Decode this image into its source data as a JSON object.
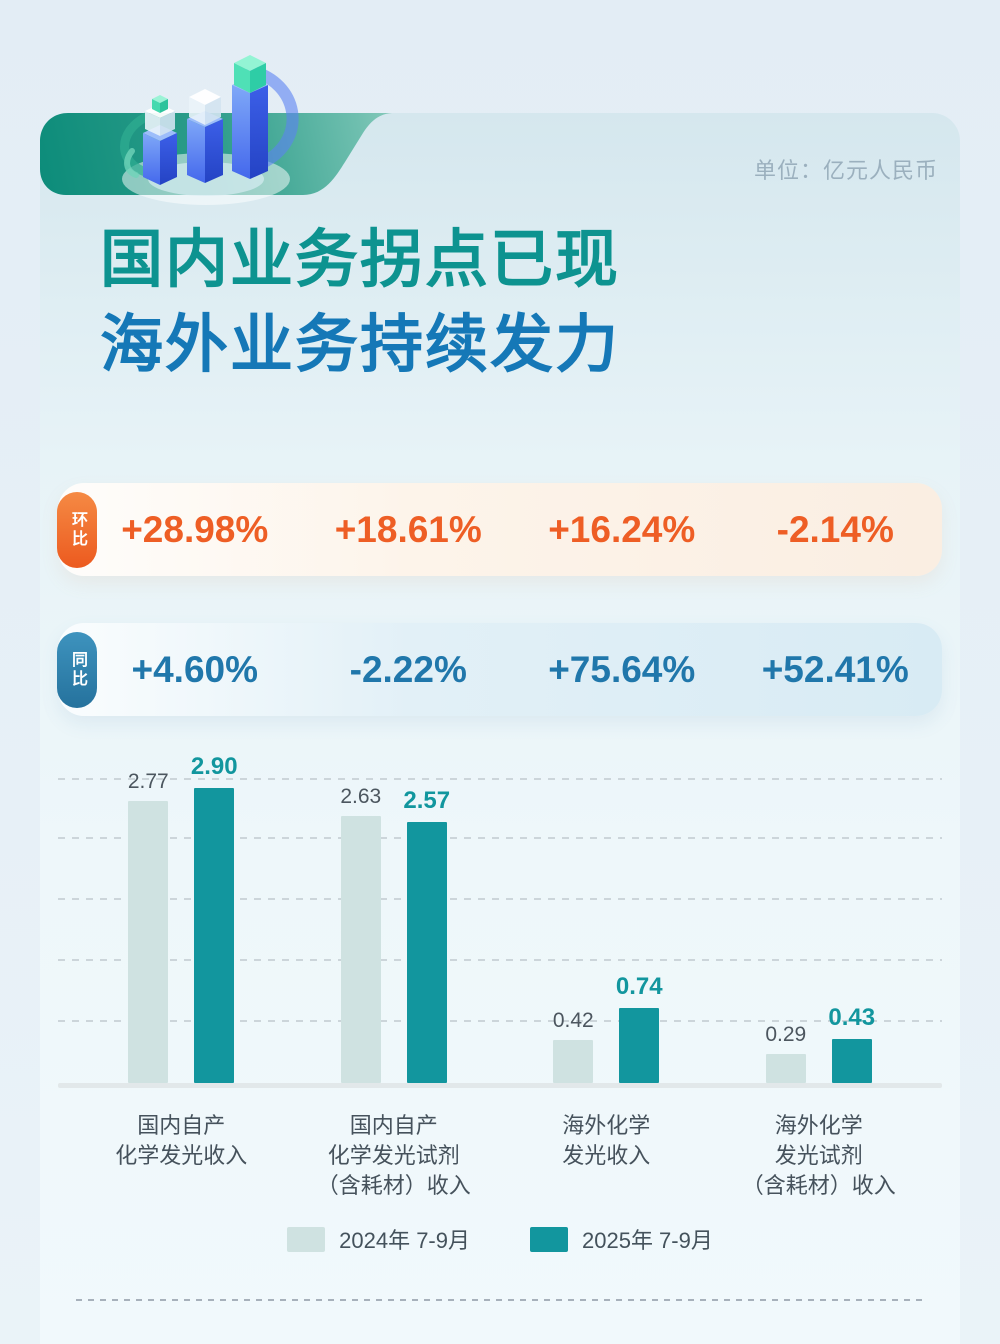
{
  "header": {
    "unit_label": "单位：亿元人民币",
    "title_line1": "国内业务拐点已现",
    "title_line2": "海外业务持续发力",
    "title_line1_color": "#0d9390",
    "title_line2_color": "#1578b7",
    "banner_color": "#0f8e7c",
    "illustration": "isometric-growth-bars"
  },
  "qoq": {
    "badge": "环比",
    "badge_color": "#ee6325",
    "text_color": "#ee5e25",
    "values": [
      "+28.98%",
      "+18.61%",
      "+16.24%",
      "-2.14%"
    ]
  },
  "yoy": {
    "badge": "同比",
    "badge_color": "#2b7fa9",
    "text_color": "#2077ab",
    "values": [
      "+4.60%",
      "-2.22%",
      "+75.64%",
      "+52.41%"
    ]
  },
  "chart_data": {
    "type": "bar",
    "title": "",
    "xlabel": "",
    "ylabel": "",
    "unit": "亿元人民币",
    "categories": [
      "国内自产化学发光收入",
      "国内自产化学发光试剂（含耗材）收入",
      "海外化学发光收入",
      "海外化学发光试剂（含耗材）收入"
    ],
    "categories_lines": [
      [
        "国内自产",
        "化学发光收入"
      ],
      [
        "国内自产",
        "化学发光试剂",
        "（含耗材）收入"
      ],
      [
        "海外化学",
        "发光收入"
      ],
      [
        "海外化学",
        "发光试剂",
        "（含耗材）收入"
      ]
    ],
    "series": [
      {
        "name": "2024年 7-9月",
        "values": [
          2.77,
          2.63,
          0.42,
          0.29
        ],
        "color": "#cfe2e1"
      },
      {
        "name": "2025年 7-9月",
        "values": [
          2.9,
          2.57,
          0.74,
          0.43
        ],
        "color": "#12969e"
      }
    ],
    "ylim": [
      0,
      3
    ],
    "grid_step": 0.6,
    "grid_style": "dashed horizontal",
    "legend_position": "bottom",
    "value_labels": true
  }
}
